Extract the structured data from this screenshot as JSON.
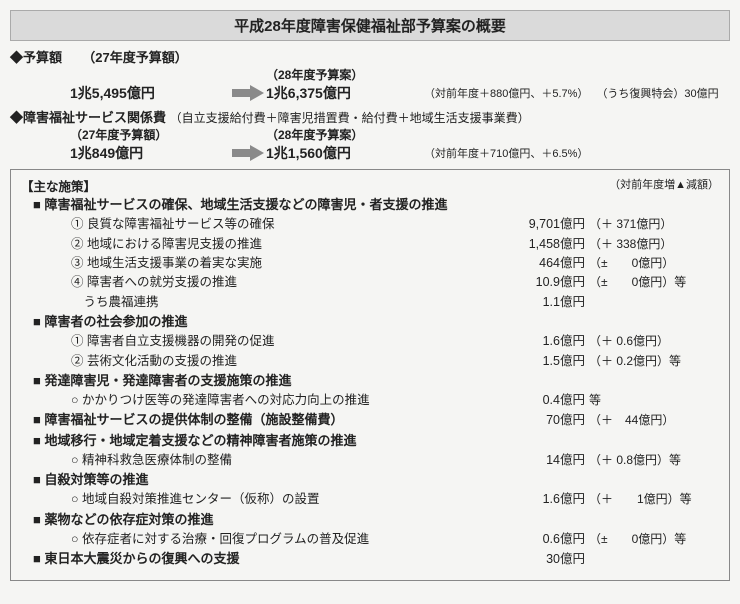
{
  "title": "平成28年度障害保健福祉部予算案の概要",
  "summary": [
    {
      "head": "◆予算額",
      "prev_label": "（27年度予算額）",
      "new_label": "（28年度予算案）",
      "prev": "1兆5,495億円",
      "new": "1兆6,375億円",
      "note1": "（対前年度＋880億円、＋5.7%）",
      "note2": "（うち復興特会）30億円"
    },
    {
      "head": "◆障害福祉サービス関係費",
      "sub": "（自立支援給付費＋障害児措置費・給付費＋地域生活支援事業費）",
      "prev_label": "（27年度予算額）",
      "new_label": "（28年度予算案）",
      "prev": "1兆849億円",
      "new": "1兆1,560億円",
      "note1": "（対前年度＋710億円、＋6.5%）"
    }
  ],
  "box_head": "【主な施策】",
  "box_right": "（対前年度増▲減額）",
  "sections": [
    {
      "title": "■ 障害福祉サービスの確保、地域生活支援などの障害児・者支援の推進",
      "items": [
        {
          "label": "① 良質な障害福祉サービス等の確保",
          "amt": "9,701億円",
          "delta": "（＋ 371億円）"
        },
        {
          "label": "② 地域における障害児支援の推進",
          "amt": "1,458億円",
          "delta": "（＋ 338億円）"
        },
        {
          "label": "③ 地域生活支援事業の着実な実施",
          "amt": "464億円",
          "delta": "（±　　0億円）"
        },
        {
          "label": "④ 障害者への就労支援の推進",
          "amt": "10.9億円",
          "delta": "（±　　0億円）等"
        },
        {
          "label": "　うち農福連携",
          "amt": "1.1億円",
          "delta": ""
        }
      ]
    },
    {
      "title": "■ 障害者の社会参加の推進",
      "items": [
        {
          "label": "① 障害者自立支援機器の開発の促進",
          "amt": "1.6億円",
          "delta": "（＋ 0.6億円）"
        },
        {
          "label": "② 芸術文化活動の支援の推進",
          "amt": "1.5億円",
          "delta": "（＋ 0.2億円）等"
        }
      ]
    },
    {
      "title": "■ 発達障害児・発達障害者の支援施策の推進",
      "items": [
        {
          "label": "○ かかりつけ医等の発達障害者への対応力向上の推進",
          "amt": "0.4億円",
          "delta": "等"
        }
      ]
    },
    {
      "title": "■ 障害福祉サービスの提供体制の整備（施設整備費）",
      "amt": "70億円",
      "delta": "（＋　44億円）",
      "items": []
    },
    {
      "title": "■ 地域移行・地域定着支援などの精神障害者施策の推進",
      "items": [
        {
          "label": "○ 精神科救急医療体制の整備",
          "amt": "14億円",
          "delta": "（＋ 0.8億円）等"
        }
      ]
    },
    {
      "title": "■ 自殺対策等の推進",
      "items": [
        {
          "label": "○ 地域自殺対策推進センター（仮称）の設置",
          "amt": "1.6億円",
          "delta": "（＋　　1億円）等"
        }
      ]
    },
    {
      "title": "■ 薬物などの依存症対策の推進",
      "items": [
        {
          "label": "○ 依存症者に対する治療・回復プログラムの普及促進",
          "amt": "0.6億円",
          "delta": "（±　　0億円）等"
        }
      ]
    },
    {
      "title": "■ 東日本大震災からの復興への支援",
      "amt": "30億円",
      "delta": "",
      "items": []
    }
  ],
  "arrow_color": "#8a8a8a"
}
